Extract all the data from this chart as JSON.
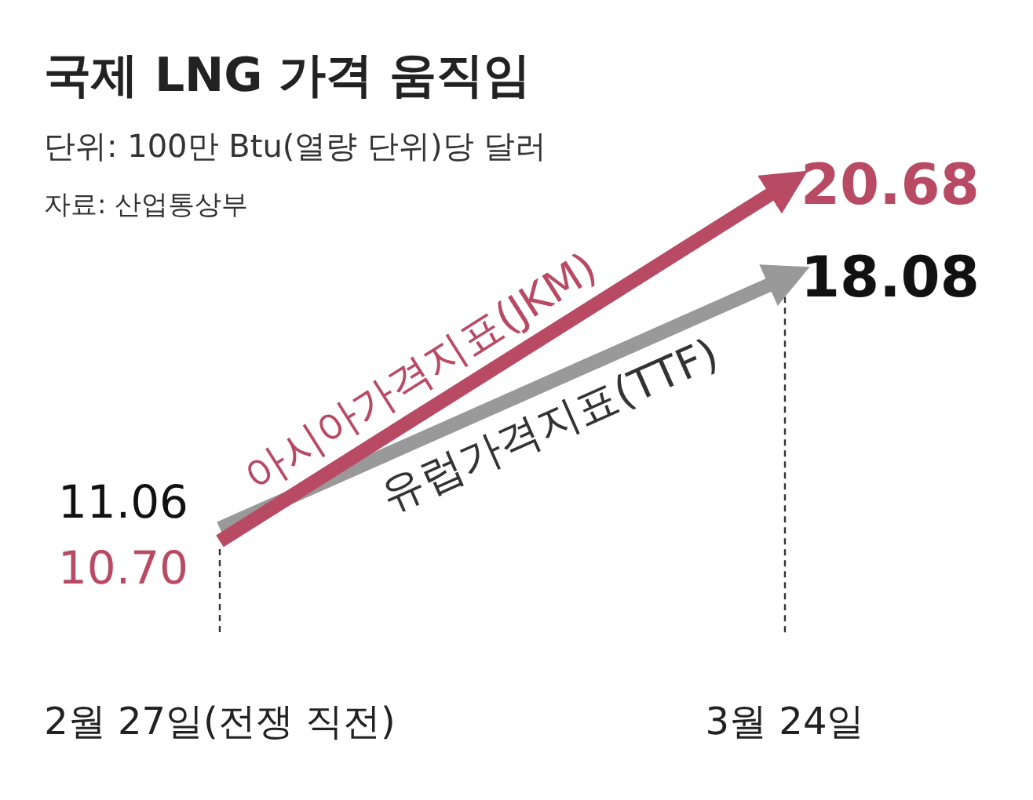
{
  "chart_data": {
    "type": "line",
    "title": "국제 LNG 가격 움직임",
    "subtitle": "단위: 100만 Btu(열량 단위)당 달러",
    "annotations": [
      "자료: 산업통상부"
    ],
    "categories": [
      "2월 27일(전쟁 직전)",
      "3월 24일"
    ],
    "series": [
      {
        "name": "아시아가격지표(JKM)",
        "color": "#b94a64",
        "values": [
          10.7,
          20.68
        ],
        "value_labels": [
          "10.70",
          "20.68"
        ]
      },
      {
        "name": "유럽가격지표(TTF)",
        "color": "#999999",
        "values": [
          11.06,
          18.08
        ],
        "value_labels": [
          "11.06",
          "18.08"
        ]
      }
    ],
    "grid": "x",
    "line_style": "solid"
  }
}
